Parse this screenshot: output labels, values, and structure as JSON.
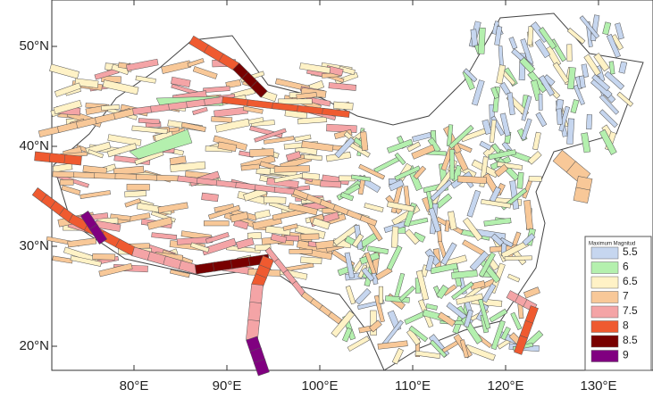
{
  "map": {
    "lat_labels": [
      "50°N",
      "40°N",
      "30°N",
      "20°N"
    ],
    "lon_labels": [
      "80°E",
      "90°E",
      "100°E",
      "110°E",
      "120°E",
      "130°E"
    ],
    "legend": {
      "title": "Maximum Magnitud",
      "items": [
        {
          "label": "5.5",
          "color": "#c6d6ef"
        },
        {
          "label": "6",
          "color": "#b4f0ae"
        },
        {
          "label": "6.5",
          "color": "#fff2c6"
        },
        {
          "label": "7",
          "color": "#f8c898"
        },
        {
          "label": "7.5",
          "color": "#f4a4a6"
        },
        {
          "label": "8",
          "color": "#ef5a30"
        },
        {
          "label": "8.5",
          "color": "#780000"
        },
        {
          "label": "9",
          "color": "#800080"
        }
      ]
    }
  }
}
